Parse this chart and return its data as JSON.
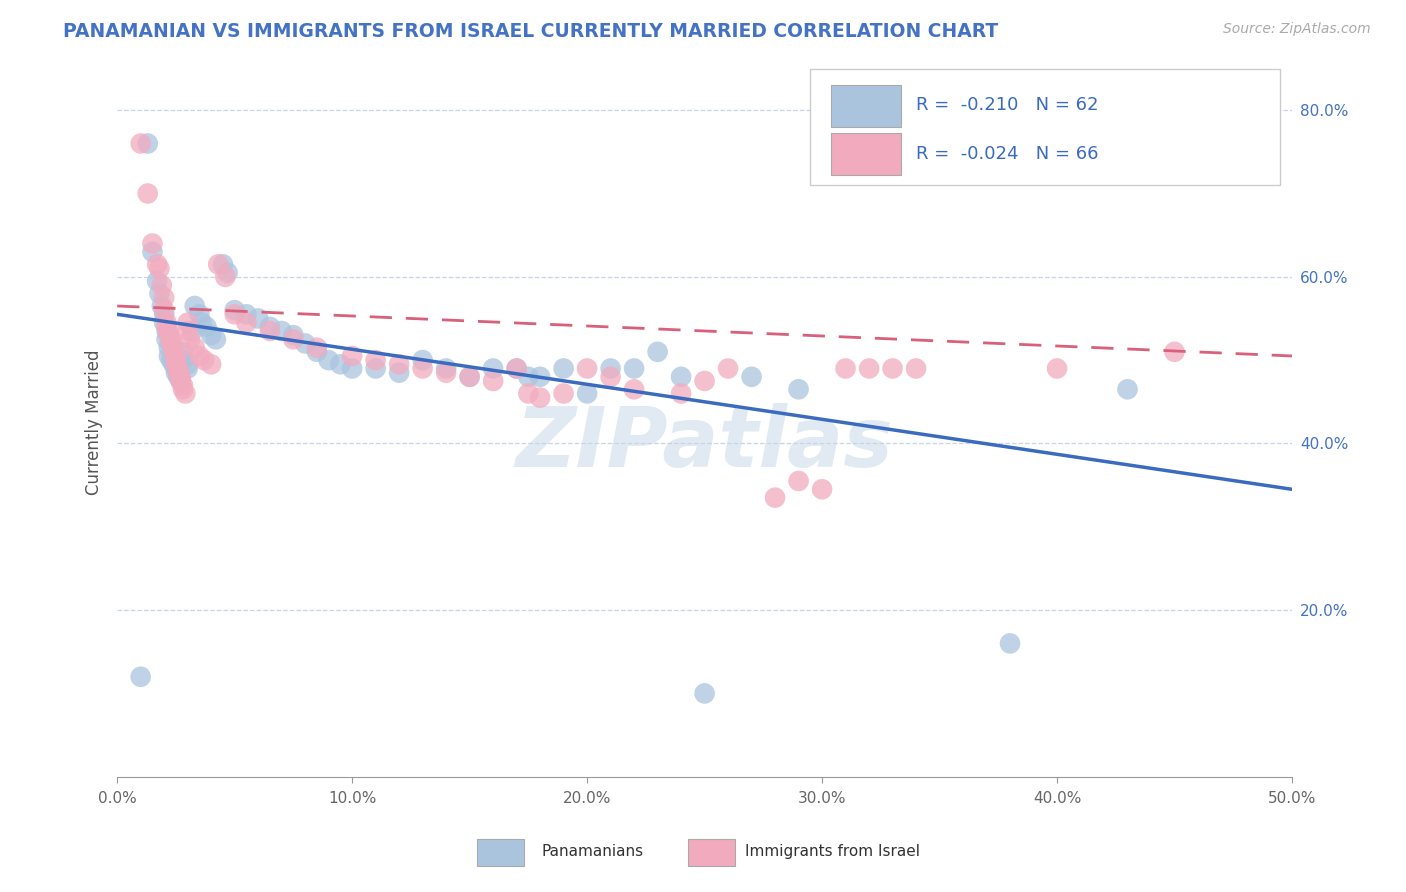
{
  "title": "PANAMANIAN VS IMMIGRANTS FROM ISRAEL CURRENTLY MARRIED CORRELATION CHART",
  "source": "Source: ZipAtlas.com",
  "ylabel": "Currently Married",
  "xlim": [
    0.0,
    0.5
  ],
  "ylim": [
    0.0,
    0.85
  ],
  "xticks": [
    0.0,
    0.1,
    0.2,
    0.3,
    0.4,
    0.5
  ],
  "xticklabels": [
    "0.0%",
    "10.0%",
    "20.0%",
    "30.0%",
    "40.0%",
    "50.0%"
  ],
  "yticks": [
    0.2,
    0.4,
    0.6,
    0.8
  ],
  "yticklabels": [
    "20.0%",
    "40.0%",
    "60.0%",
    "80.0%"
  ],
  "legend_labels": [
    "Panamanians",
    "Immigrants from Israel"
  ],
  "legend_r0": "R =  -0.210",
  "legend_n0": "N = 62",
  "legend_r1": "R =  -0.024",
  "legend_n1": "N = 66",
  "blue_color": "#aac4de",
  "pink_color": "#f2abbe",
  "blue_line_color": "#3a6bbf",
  "pink_line_color": "#d9607a",
  "background_color": "#ffffff",
  "grid_color": "#c8d4e8",
  "watermark": "ZIPatlas",
  "blue_scatter": [
    [
      0.01,
      0.12
    ],
    [
      0.013,
      0.76
    ],
    [
      0.015,
      0.63
    ],
    [
      0.017,
      0.595
    ],
    [
      0.018,
      0.58
    ],
    [
      0.019,
      0.565
    ],
    [
      0.02,
      0.555
    ],
    [
      0.02,
      0.545
    ],
    [
      0.021,
      0.535
    ],
    [
      0.021,
      0.525
    ],
    [
      0.022,
      0.515
    ],
    [
      0.022,
      0.505
    ],
    [
      0.023,
      0.5
    ],
    [
      0.024,
      0.495
    ],
    [
      0.025,
      0.49
    ],
    [
      0.025,
      0.485
    ],
    [
      0.026,
      0.48
    ],
    [
      0.027,
      0.475
    ],
    [
      0.028,
      0.51
    ],
    [
      0.028,
      0.5
    ],
    [
      0.03,
      0.495
    ],
    [
      0.03,
      0.49
    ],
    [
      0.032,
      0.535
    ],
    [
      0.033,
      0.565
    ],
    [
      0.035,
      0.555
    ],
    [
      0.036,
      0.545
    ],
    [
      0.038,
      0.54
    ],
    [
      0.04,
      0.53
    ],
    [
      0.042,
      0.525
    ],
    [
      0.045,
      0.615
    ],
    [
      0.047,
      0.605
    ],
    [
      0.05,
      0.56
    ],
    [
      0.055,
      0.555
    ],
    [
      0.06,
      0.55
    ],
    [
      0.065,
      0.54
    ],
    [
      0.07,
      0.535
    ],
    [
      0.075,
      0.53
    ],
    [
      0.08,
      0.52
    ],
    [
      0.085,
      0.51
    ],
    [
      0.09,
      0.5
    ],
    [
      0.095,
      0.495
    ],
    [
      0.1,
      0.49
    ],
    [
      0.11,
      0.49
    ],
    [
      0.12,
      0.485
    ],
    [
      0.13,
      0.5
    ],
    [
      0.14,
      0.49
    ],
    [
      0.15,
      0.48
    ],
    [
      0.16,
      0.49
    ],
    [
      0.17,
      0.49
    ],
    [
      0.175,
      0.48
    ],
    [
      0.18,
      0.48
    ],
    [
      0.19,
      0.49
    ],
    [
      0.2,
      0.46
    ],
    [
      0.21,
      0.49
    ],
    [
      0.22,
      0.49
    ],
    [
      0.23,
      0.51
    ],
    [
      0.24,
      0.48
    ],
    [
      0.25,
      0.1
    ],
    [
      0.27,
      0.48
    ],
    [
      0.29,
      0.465
    ],
    [
      0.38,
      0.16
    ],
    [
      0.43,
      0.465
    ]
  ],
  "pink_scatter": [
    [
      0.01,
      0.76
    ],
    [
      0.013,
      0.7
    ],
    [
      0.015,
      0.64
    ],
    [
      0.017,
      0.615
    ],
    [
      0.018,
      0.61
    ],
    [
      0.019,
      0.59
    ],
    [
      0.02,
      0.575
    ],
    [
      0.02,
      0.56
    ],
    [
      0.021,
      0.545
    ],
    [
      0.021,
      0.54
    ],
    [
      0.022,
      0.535
    ],
    [
      0.022,
      0.53
    ],
    [
      0.023,
      0.525
    ],
    [
      0.023,
      0.52
    ],
    [
      0.024,
      0.515
    ],
    [
      0.024,
      0.51
    ],
    [
      0.025,
      0.505
    ],
    [
      0.025,
      0.5
    ],
    [
      0.025,
      0.495
    ],
    [
      0.026,
      0.49
    ],
    [
      0.026,
      0.485
    ],
    [
      0.027,
      0.48
    ],
    [
      0.027,
      0.475
    ],
    [
      0.028,
      0.47
    ],
    [
      0.028,
      0.465
    ],
    [
      0.029,
      0.46
    ],
    [
      0.03,
      0.545
    ],
    [
      0.03,
      0.535
    ],
    [
      0.031,
      0.525
    ],
    [
      0.033,
      0.515
    ],
    [
      0.035,
      0.505
    ],
    [
      0.037,
      0.5
    ],
    [
      0.04,
      0.495
    ],
    [
      0.043,
      0.615
    ],
    [
      0.046,
      0.6
    ],
    [
      0.05,
      0.555
    ],
    [
      0.055,
      0.545
    ],
    [
      0.065,
      0.535
    ],
    [
      0.075,
      0.525
    ],
    [
      0.085,
      0.515
    ],
    [
      0.1,
      0.505
    ],
    [
      0.11,
      0.5
    ],
    [
      0.12,
      0.495
    ],
    [
      0.13,
      0.49
    ],
    [
      0.14,
      0.485
    ],
    [
      0.15,
      0.48
    ],
    [
      0.16,
      0.475
    ],
    [
      0.17,
      0.49
    ],
    [
      0.175,
      0.46
    ],
    [
      0.18,
      0.455
    ],
    [
      0.19,
      0.46
    ],
    [
      0.2,
      0.49
    ],
    [
      0.21,
      0.48
    ],
    [
      0.22,
      0.465
    ],
    [
      0.24,
      0.46
    ],
    [
      0.25,
      0.475
    ],
    [
      0.26,
      0.49
    ],
    [
      0.28,
      0.335
    ],
    [
      0.29,
      0.355
    ],
    [
      0.3,
      0.345
    ],
    [
      0.31,
      0.49
    ],
    [
      0.32,
      0.49
    ],
    [
      0.33,
      0.49
    ],
    [
      0.34,
      0.49
    ],
    [
      0.4,
      0.49
    ],
    [
      0.45,
      0.51
    ]
  ]
}
